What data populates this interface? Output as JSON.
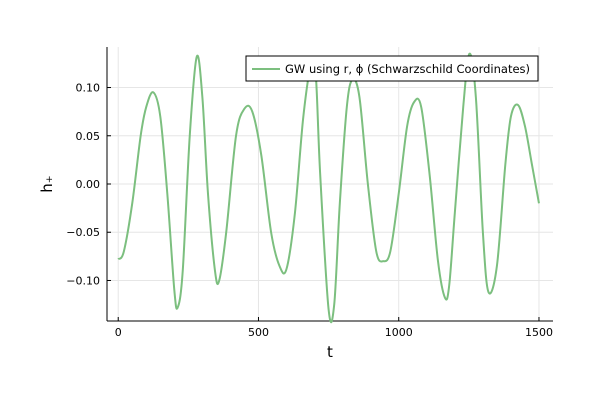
{
  "chart_data": {
    "type": "line",
    "xlabel": "t",
    "ylabel": "h₊",
    "xlim": [
      -40,
      1550
    ],
    "ylim": [
      -0.142,
      0.142
    ],
    "xticks": [
      0,
      500,
      1000,
      1500
    ],
    "xtick_labels": [
      "0",
      "500",
      "1000",
      "1500"
    ],
    "yticks": [
      -0.1,
      -0.05,
      0.0,
      0.05,
      0.1
    ],
    "ytick_labels": [
      "−0.10",
      "−0.05",
      "0.00",
      "0.05",
      "0.10"
    ],
    "grid": true,
    "legend": "top-right",
    "series": [
      {
        "name": "GW using r, ϕ (Schwarzschild Coordinates)",
        "color": "#7cbf7f",
        "x": [
          0,
          20,
          50,
          80,
          100,
          125,
          150,
          175,
          200,
          212,
          230,
          255,
          280,
          300,
          320,
          345,
          360,
          385,
          420,
          450,
          478,
          510,
          545,
          575,
          600,
          630,
          660,
          690,
          705,
          720,
          750,
          770,
          790,
          815,
          835,
          860,
          890,
          920,
          945,
          970,
          1000,
          1030,
          1055,
          1080,
          1110,
          1140,
          1165,
          1180,
          1200,
          1230,
          1252,
          1275,
          1300,
          1320,
          1350,
          1380,
          1400,
          1425,
          1450,
          1475,
          1500
        ],
        "y": [
          -0.078,
          -0.07,
          -0.02,
          0.05,
          0.08,
          0.095,
          0.07,
          -0.01,
          -0.11,
          -0.128,
          -0.09,
          0.05,
          0.132,
          0.09,
          -0.01,
          -0.09,
          -0.1,
          -0.05,
          0.05,
          0.078,
          0.075,
          0.03,
          -0.05,
          -0.085,
          -0.088,
          -0.03,
          0.07,
          0.127,
          0.11,
          0.01,
          -0.13,
          -0.125,
          -0.02,
          0.08,
          0.108,
          0.09,
          0.0,
          -0.07,
          -0.08,
          -0.07,
          -0.01,
          0.06,
          0.085,
          0.08,
          0.01,
          -0.08,
          -0.118,
          -0.105,
          -0.03,
          0.08,
          0.135,
          0.09,
          -0.05,
          -0.112,
          -0.085,
          0.02,
          0.07,
          0.082,
          0.06,
          0.02,
          -0.02
        ]
      }
    ]
  }
}
